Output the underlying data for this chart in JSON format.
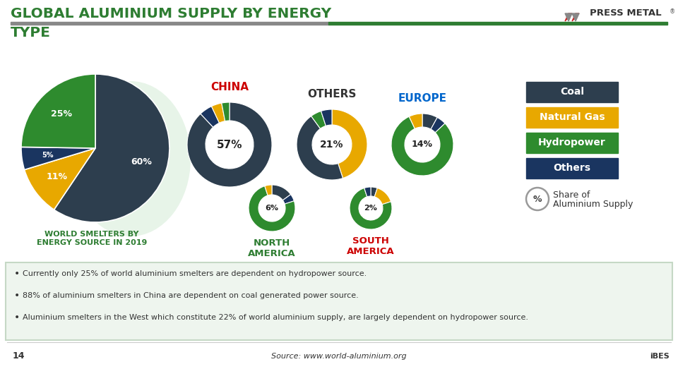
{
  "title_line1": "GLOBAL ALUMINIUM SUPPLY BY ENERGY",
  "title_line2": "TYPE",
  "title_color": "#2e7d32",
  "background_color": "#ffffff",
  "colors": {
    "coal": "#2d3e4e",
    "natural_gas": "#e8a800",
    "hydropower": "#2e8b2e",
    "others": "#1a3560"
  },
  "world_pie_values": [
    60,
    11,
    5,
    25
  ],
  "world_pie_colors": [
    "#2d3e4e",
    "#e8a800",
    "#1a3560",
    "#2e8b2e"
  ],
  "world_pie_labels": [
    "60%",
    "11%",
    "5%",
    "25%"
  ],
  "world_pie_label": "WORLD SMELTERS BY\nENERGY SOURCE IN 2019",
  "world_pie_label_color": "#2e7d32",
  "china_vals": [
    88,
    5,
    4,
    3
  ],
  "china_cols": [
    "#2d3e4e",
    "#1a3560",
    "#e8a800",
    "#2e8b2e"
  ],
  "china_label": "CHINA",
  "china_label_color": "#cc0000",
  "china_share": "57%",
  "others_vals": [
    45,
    45,
    5,
    5
  ],
  "others_cols": [
    "#e8a800",
    "#2d3e4e",
    "#2e8b2e",
    "#1a3560"
  ],
  "others_label": "OTHERS",
  "others_label_color": "#333333",
  "others_share": "21%",
  "europe_vals": [
    8,
    5,
    80,
    7
  ],
  "europe_cols": [
    "#2d3e4e",
    "#1a3560",
    "#2e8b2e",
    "#e8a800"
  ],
  "europe_label": "EUROPE",
  "europe_label_color": "#0066cc",
  "europe_share": "14%",
  "na_vals": [
    15,
    5,
    75,
    5
  ],
  "na_cols": [
    "#2d3e4e",
    "#1a3560",
    "#2e8b2e",
    "#e8a800"
  ],
  "na_label": "NORTH\nAMERICA",
  "na_label_color": "#2e7d32",
  "na_share": "6%",
  "sa_vals": [
    5,
    15,
    75,
    5
  ],
  "sa_cols": [
    "#2d3e4e",
    "#e8a800",
    "#2e8b2e",
    "#1a3560"
  ],
  "sa_label": "SOUTH\nAMERICA",
  "sa_label_color": "#cc0000",
  "sa_share": "2%",
  "legend_items": [
    "Coal",
    "Natural Gas",
    "Hydropower",
    "Others"
  ],
  "legend_colors": [
    "#2d3e4e",
    "#e8a800",
    "#2e8b2e",
    "#1a3560"
  ],
  "bullet1": "Currently only 25% of world aluminium smelters are dependent on hydropower source.",
  "bullet2": "88% of aluminium smelters in China are dependent on coal generated power source.",
  "bullet3": "Aluminium smelters in the West which constitute 22% of world aluminium supply, are largely dependent on hydropower source.",
  "source_text": "Source: www.world-aluminium.org",
  "page_number": "14",
  "header_bar_gray": "#888888",
  "header_bar_green": "#2e7d32",
  "bullet_bg": "#eef5ee",
  "bullet_border": "#c5d8c5",
  "footer_logo": "iBES"
}
